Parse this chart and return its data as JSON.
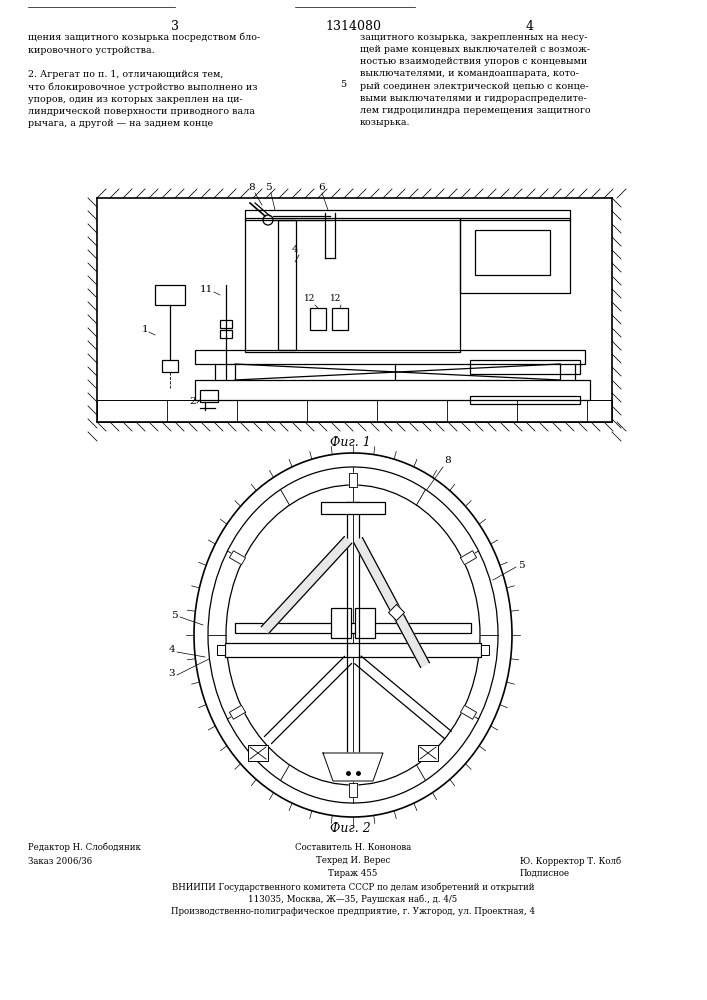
{
  "page_width": 7.07,
  "page_height": 10.0,
  "bg_color": "#ffffff",
  "header_patent_number": "1314080",
  "header_page_left": "3",
  "header_page_right": "4",
  "text_left": "щения защитного козырька посредством бло-\nкировочного устройства.\n\n2. Агрегат по п. 1, отличающийся тем,\nчто блокировочное устройство выполнено из\nупоров, один из которых закреплен на ци-\nлиндрической поверхности приводного вала\nрычага, а другой — на заднем конце",
  "text_right": "защитного козырька, закрепленных на несу-\nщей раме концевых выключателей с возмож-\nностью взаимодействия упоров с концевыми\nвыключателями, и командоаппарата, кото-\nрый соединен электрической цепью с конце-\nвыми выключателями и гидрораспределите-\nлем гидроцилиндра перемещения защитного\nкозырька.",
  "fig1_caption": "Фиг. 1",
  "fig2_caption": "Фиг. 2",
  "footer_line1_left": "Редактор Н. Слободяник",
  "footer_line1_center": "Составитель Н. Кононова",
  "footer_line2_left": "Заказ 2006/36",
  "footer_line2_center": "Техред И. Верес",
  "footer_line2_right": "Ю. Корректор Т. Колб",
  "footer_line3_center": "Тираж 455",
  "footer_line3_right": "Подписное",
  "footer_vniiipi": "ВНИИПИ Государственного комитета СССР по делам изобретений и открытий",
  "footer_address": "113035, Москва, Ж—35, Раушская наб., д. 4/5",
  "footer_enterprise": "Производственно-полиграфическое предприятие, г. Ужгород, ул. Проектная, 4"
}
